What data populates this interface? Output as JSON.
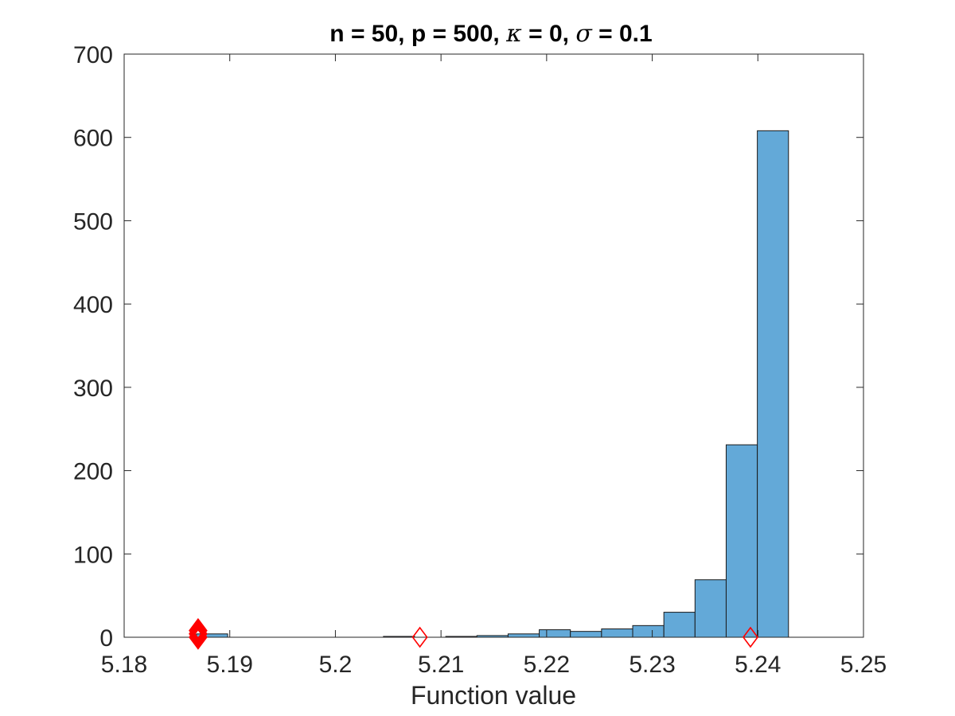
{
  "chart_data": {
    "type": "bar",
    "title_parts": [
      {
        "text": "n = 50, p = 500, ",
        "style": "normal"
      },
      {
        "text": "κ",
        "style": "italic"
      },
      {
        "text": " = 0, ",
        "style": "normal"
      },
      {
        "text": "σ",
        "style": "italic"
      },
      {
        "text": " = 0.1",
        "style": "normal"
      }
    ],
    "xlabel": "Function value",
    "ylabel": "",
    "xlim": [
      5.18,
      5.25
    ],
    "ylim": [
      0,
      700
    ],
    "xticks": [
      "5.18",
      "5.19",
      "5.2",
      "5.21",
      "5.22",
      "5.23",
      "5.24",
      "5.25"
    ],
    "yticks": [
      "0",
      "100",
      "200",
      "300",
      "400",
      "500",
      "600",
      "700"
    ],
    "grid": false,
    "bar_color": "#63a9d8",
    "bar_edge_color": "#1a1a1a",
    "bin_width": 0.00295,
    "bins": [
      {
        "x0": 5.18685,
        "count": 4
      },
      {
        "x0": 5.20455,
        "count": 1
      },
      {
        "x0": 5.21045,
        "count": 1
      },
      {
        "x0": 5.2134,
        "count": 2
      },
      {
        "x0": 5.21635,
        "count": 4
      },
      {
        "x0": 5.2193,
        "count": 9
      },
      {
        "x0": 5.22225,
        "count": 7
      },
      {
        "x0": 5.2252,
        "count": 10
      },
      {
        "x0": 5.22815,
        "count": 14
      },
      {
        "x0": 5.2311,
        "count": 30
      },
      {
        "x0": 5.23405,
        "count": 69
      },
      {
        "x0": 5.237,
        "count": 231
      },
      {
        "x0": 5.23995,
        "count": 608
      }
    ],
    "markers": {
      "shape": "diamond",
      "color": "#ff0000",
      "points": [
        {
          "x": 5.187,
          "y": 0,
          "filled": true
        },
        {
          "x": 5.187,
          "y": 4,
          "filled": true
        },
        {
          "x": 5.187,
          "y": 8,
          "filled": true
        },
        {
          "x": 5.208,
          "y": 0,
          "filled": false
        },
        {
          "x": 5.2393,
          "y": 0,
          "filled": false
        }
      ]
    }
  }
}
